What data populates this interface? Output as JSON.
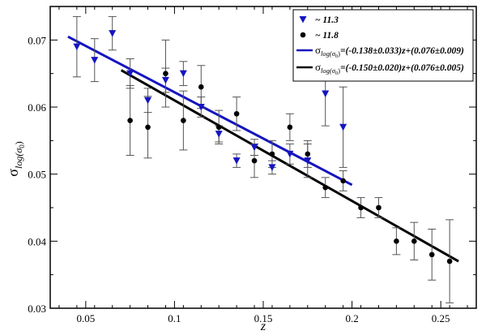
{
  "chart_data": {
    "type": "scatter",
    "xlabel": "z",
    "ylabel_main": "σ",
    "ylabel_sub": "log(σ",
    "ylabel_subsub": "0",
    "ylabel_close": ")",
    "xlim": [
      0.03,
      0.27
    ],
    "ylim": [
      0.03,
      0.075
    ],
    "xticks": [
      0.05,
      0.1,
      0.15,
      0.2,
      0.25
    ],
    "xtick_labels": [
      "0.05",
      "0.1",
      "0.15",
      "0.2",
      "0.25"
    ],
    "yticks": [
      0.03,
      0.04,
      0.05,
      0.06,
      0.07
    ],
    "ytick_labels": [
      "0.03",
      "0.04",
      "0.05",
      "0.06",
      "0.07"
    ],
    "legend_position": "top-right",
    "series": [
      {
        "name": "~ 11.3",
        "marker": "triangle-down",
        "color": "#1515c0",
        "points": [
          {
            "x": 0.045,
            "y": 0.069,
            "err": 0.0045
          },
          {
            "x": 0.055,
            "y": 0.067,
            "err": 0.0032
          },
          {
            "x": 0.065,
            "y": 0.071,
            "err": 0.0025
          },
          {
            "x": 0.075,
            "y": 0.065,
            "err": 0.0022
          },
          {
            "x": 0.085,
            "y": 0.061,
            "err": 0.0018
          },
          {
            "x": 0.095,
            "y": 0.064,
            "err": 0.0018
          },
          {
            "x": 0.105,
            "y": 0.065,
            "err": 0.0018
          },
          {
            "x": 0.115,
            "y": 0.06,
            "err": 0.0015
          },
          {
            "x": 0.125,
            "y": 0.056,
            "err": 0.0012
          },
          {
            "x": 0.135,
            "y": 0.052,
            "err": 0.001
          },
          {
            "x": 0.145,
            "y": 0.054,
            "err": 0.0012
          },
          {
            "x": 0.155,
            "y": 0.051,
            "err": 0.001
          },
          {
            "x": 0.165,
            "y": 0.053,
            "err": 0.0015
          },
          {
            "x": 0.175,
            "y": 0.052,
            "err": 0.0025
          },
          {
            "x": 0.185,
            "y": 0.062,
            "err": 0.0048
          },
          {
            "x": 0.195,
            "y": 0.057,
            "err": 0.006
          }
        ]
      },
      {
        "name": "~ 11.8",
        "marker": "circle",
        "color": "#000000",
        "points": [
          {
            "x": 0.075,
            "y": 0.058,
            "err": 0.0052
          },
          {
            "x": 0.085,
            "y": 0.057,
            "err": 0.0046
          },
          {
            "x": 0.095,
            "y": 0.065,
            "err": 0.005
          },
          {
            "x": 0.105,
            "y": 0.058,
            "err": 0.0044
          },
          {
            "x": 0.115,
            "y": 0.063,
            "err": 0.0032
          },
          {
            "x": 0.125,
            "y": 0.057,
            "err": 0.0025
          },
          {
            "x": 0.135,
            "y": 0.059,
            "err": 0.0025
          },
          {
            "x": 0.145,
            "y": 0.052,
            "err": 0.0025
          },
          {
            "x": 0.155,
            "y": 0.053,
            "err": 0.002
          },
          {
            "x": 0.165,
            "y": 0.057,
            "err": 0.002
          },
          {
            "x": 0.175,
            "y": 0.053,
            "err": 0.002
          },
          {
            "x": 0.185,
            "y": 0.048,
            "err": 0.0015
          },
          {
            "x": 0.195,
            "y": 0.049,
            "err": 0.0015
          },
          {
            "x": 0.205,
            "y": 0.045,
            "err": 0.0015
          },
          {
            "x": 0.215,
            "y": 0.045,
            "err": 0.0015
          },
          {
            "x": 0.225,
            "y": 0.04,
            "err": 0.002
          },
          {
            "x": 0.235,
            "y": 0.04,
            "err": 0.0028
          },
          {
            "x": 0.245,
            "y": 0.038,
            "err": 0.0038
          },
          {
            "x": 0.255,
            "y": 0.037,
            "err": 0.0062
          }
        ]
      }
    ],
    "fit_lines": [
      {
        "label_sigma": "σ",
        "label_sub": "log(σ",
        "label_subsub": "0",
        "label_subclose": ")",
        "label_text": "=(-0.138±0.033)z+(0.076±0.009)",
        "color": "#1515c0",
        "x": [
          0.04,
          0.2
        ],
        "y": [
          0.0705,
          0.0484
        ]
      },
      {
        "label_sigma": "σ",
        "label_sub": "log(σ",
        "label_subsub": "0",
        "label_subclose": ")",
        "label_text": "=(-0.150±0.020)z+(0.076±0.005)",
        "color": "#000000",
        "x": [
          0.07,
          0.26
        ],
        "y": [
          0.0655,
          0.037
        ]
      }
    ]
  }
}
